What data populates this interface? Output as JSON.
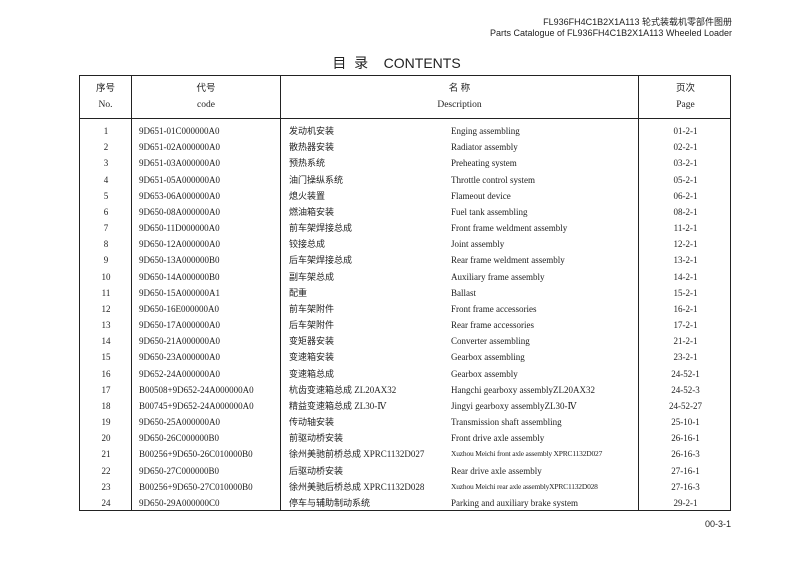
{
  "header": {
    "line1": "FL936FH4C1B2X1A113  轮式装载机零部件图册",
    "line2": "Parts Catalogue of FL936FH4C1B2X1A113  Wheeled Loader"
  },
  "title": "目  录    CONTENTS",
  "table": {
    "columns": [
      {
        "cn": "序号",
        "en": "No."
      },
      {
        "cn": "代号",
        "en": "code"
      },
      {
        "cn": "名 称",
        "en": "Description"
      },
      {
        "cn": "页次",
        "en": "Page"
      }
    ],
    "rows": [
      {
        "no": "1",
        "code": "9D651-01C000000A0",
        "cn": "发动机安装",
        "en": "Enging assembling",
        "page": "01-2-1"
      },
      {
        "no": "2",
        "code": "9D651-02A000000A0",
        "cn": "散热器安装",
        "en": "Radiator assembly",
        "page": "02-2-1"
      },
      {
        "no": "3",
        "code": "9D651-03A000000A0",
        "cn": "预热系统",
        "en": "Preheating system",
        "page": "03-2-1"
      },
      {
        "no": "4",
        "code": "9D651-05A000000A0",
        "cn": "油门操纵系统",
        "en": "Throttle control system",
        "page": "05-2-1"
      },
      {
        "no": "5",
        "code": "9D653-06A000000A0",
        "cn": "熄火装置",
        "en": "Flameout device",
        "page": "06-2-1"
      },
      {
        "no": "6",
        "code": "9D650-08A000000A0",
        "cn": "燃油箱安装",
        "en": "Fuel tank assembling",
        "page": "08-2-1"
      },
      {
        "no": "7",
        "code": "9D650-11D000000A0",
        "cn": "前车架焊接总成",
        "en": "Front frame weldment assembly",
        "page": "11-2-1"
      },
      {
        "no": "8",
        "code": "9D650-12A000000A0",
        "cn": "铰接总成",
        "en": "Joint assembly",
        "page": "12-2-1"
      },
      {
        "no": "9",
        "code": "9D650-13A000000B0",
        "cn": "后车架焊接总成",
        "en": "Rear frame weldment assembly",
        "page": "13-2-1"
      },
      {
        "no": "10",
        "code": "9D650-14A000000B0",
        "cn": "副车架总成",
        "en": "Auxiliary frame assembly",
        "page": "14-2-1"
      },
      {
        "no": "11",
        "code": "9D650-15A000000A1",
        "cn": "配重",
        "en": "Ballast",
        "page": "15-2-1"
      },
      {
        "no": "12",
        "code": "9D650-16E000000A0",
        "cn": "前车架附件",
        "en": "Front frame accessories",
        "page": "16-2-1"
      },
      {
        "no": "13",
        "code": "9D650-17A000000A0",
        "cn": "后车架附件",
        "en": "Rear frame accessories",
        "page": "17-2-1"
      },
      {
        "no": "14",
        "code": "9D650-21A000000A0",
        "cn": "变矩器安装",
        "en": "Converter assembling",
        "page": "21-2-1"
      },
      {
        "no": "15",
        "code": "9D650-23A000000A0",
        "cn": "变速箱安装",
        "en": "Gearbox assembling",
        "page": "23-2-1"
      },
      {
        "no": "16",
        "code": "9D652-24A000000A0",
        "cn": "变速箱总成",
        "en": "Gearbox assembly",
        "page": "24-52-1"
      },
      {
        "no": "17",
        "code": "B00508+9D652-24A000000A0",
        "cn": "杭齿变速箱总成 ZL20AX32",
        "en": "Hangchi gearboxy assemblyZL20AX32",
        "page": "24-52-3"
      },
      {
        "no": "18",
        "code": "B00745+9D652-24A000000A0",
        "cn": "精益变速箱总成 ZL30-Ⅳ",
        "en": "Jingyi gearboxy assemblyZL30-Ⅳ",
        "page": "24-52-27"
      },
      {
        "no": "19",
        "code": "9D650-25A000000A0",
        "cn": "传动轴安装",
        "en": "Transmission shaft assembling",
        "page": "25-10-1"
      },
      {
        "no": "20",
        "code": "9D650-26C000000B0",
        "cn": "前驱动桥安装",
        "en": "Front drive axle assembly",
        "page": "26-16-1"
      },
      {
        "no": "21",
        "code": "B00256+9D650-26C010000B0",
        "cn": "徐州美驰前桥总成 XPRC1132D027",
        "en": "Xuzhou Meichi front axle assembly XPRC1132D027",
        "page": "26-16-3"
      },
      {
        "no": "22",
        "code": "9D650-27C000000B0",
        "cn": "后驱动桥安装",
        "en": "Rear drive axle assembly",
        "page": "27-16-1"
      },
      {
        "no": "23",
        "code": "B00256+9D650-27C010000B0",
        "cn": "徐州美驰后桥总成 XPRC1132D028",
        "en": "Xuzhou Meichi rear axle assemblyXPRC1132D028",
        "page": "27-16-3"
      },
      {
        "no": "24",
        "code": "9D650-29A000000C0",
        "cn": "停车与辅助制动系统",
        "en": "Parking and auxiliary brake system",
        "page": "29-2-1"
      }
    ]
  },
  "footer": {
    "page_number": "00-3-1"
  }
}
